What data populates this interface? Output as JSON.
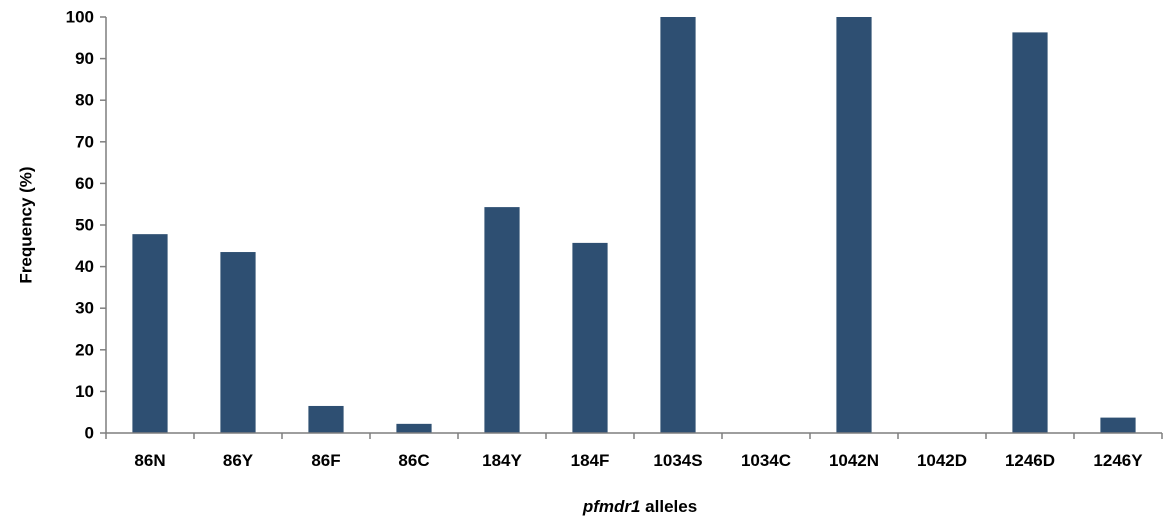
{
  "chart_data": {
    "type": "bar",
    "categories": [
      "86N",
      "86Y",
      "86F",
      "86C",
      "184Y",
      "184F",
      "1034S",
      "1034C",
      "1042N",
      "1042D",
      "1246D",
      "1246Y"
    ],
    "values": [
      47.8,
      43.5,
      6.5,
      2.2,
      54.3,
      45.7,
      100,
      0,
      100,
      0,
      96.3,
      3.7
    ],
    "ylabel": "Frequency (%)",
    "xlabel_italic": "pfmdr1",
    "xlabel_rest": " alleles",
    "ylim": [
      0,
      100
    ],
    "yticks": [
      0,
      10,
      20,
      30,
      40,
      50,
      60,
      70,
      80,
      90,
      100
    ],
    "grid": false,
    "legend": "none",
    "bar_color": "#2e4f72"
  }
}
